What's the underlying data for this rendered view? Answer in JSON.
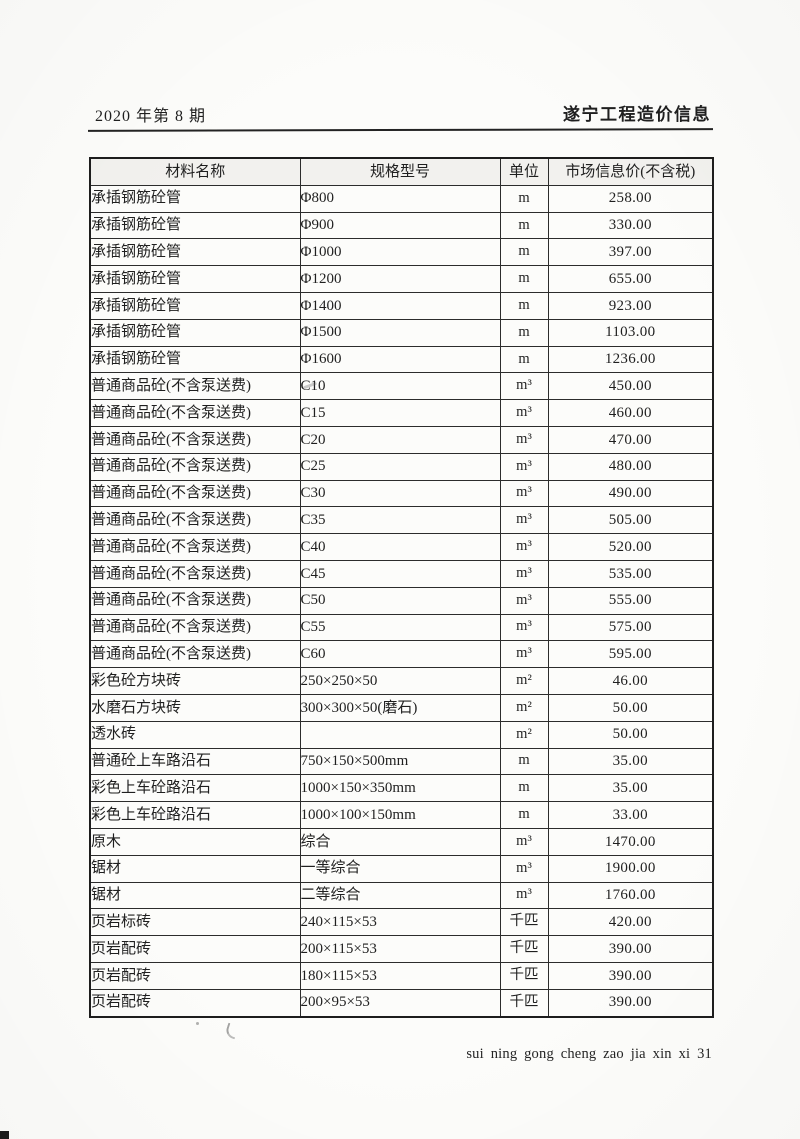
{
  "page": {
    "header_left": "2020 年第 8 期",
    "header_right": "遂宁工程造价信息",
    "footer": "sui ning gong cheng zao jia xin xi 31"
  },
  "colors": {
    "ink": "#1f1f1f",
    "paper": "#fcfcfa"
  },
  "table": {
    "columns": [
      "材料名称",
      "规格型号",
      "单位",
      "市场信息价(不含税)"
    ],
    "rows": [
      [
        "承插钢筋砼管",
        "Φ800",
        "m",
        "258.00"
      ],
      [
        "承插钢筋砼管",
        "Φ900",
        "m",
        "330.00"
      ],
      [
        "承插钢筋砼管",
        "Φ1000",
        "m",
        "397.00"
      ],
      [
        "承插钢筋砼管",
        "Φ1200",
        "m",
        "655.00"
      ],
      [
        "承插钢筋砼管",
        "Φ1400",
        "m",
        "923.00"
      ],
      [
        "承插钢筋砼管",
        "Φ1500",
        "m",
        "1103.00"
      ],
      [
        "承插钢筋砼管",
        "Φ1600",
        "m",
        "1236.00"
      ],
      [
        "普通商品砼(不含泵送费)",
        "C10",
        "m³",
        "450.00"
      ],
      [
        "普通商品砼(不含泵送费)",
        "C15",
        "m³",
        "460.00"
      ],
      [
        "普通商品砼(不含泵送费)",
        "C20",
        "m³",
        "470.00"
      ],
      [
        "普通商品砼(不含泵送费)",
        "C25",
        "m³",
        "480.00"
      ],
      [
        "普通商品砼(不含泵送费)",
        "C30",
        "m³",
        "490.00"
      ],
      [
        "普通商品砼(不含泵送费)",
        "C35",
        "m³",
        "505.00"
      ],
      [
        "普通商品砼(不含泵送费)",
        "C40",
        "m³",
        "520.00"
      ],
      [
        "普通商品砼(不含泵送费)",
        "C45",
        "m³",
        "535.00"
      ],
      [
        "普通商品砼(不含泵送费)",
        "C50",
        "m³",
        "555.00"
      ],
      [
        "普通商品砼(不含泵送费)",
        "C55",
        "m³",
        "575.00"
      ],
      [
        "普通商品砼(不含泵送费)",
        "C60",
        "m³",
        "595.00"
      ],
      [
        "彩色砼方块砖",
        "250×250×50",
        "m²",
        "46.00"
      ],
      [
        "水磨石方块砖",
        "300×300×50(磨石)",
        "m²",
        "50.00"
      ],
      [
        "透水砖",
        "",
        "m²",
        "50.00"
      ],
      [
        "普通砼上车路沿石",
        "750×150×500mm",
        "m",
        "35.00"
      ],
      [
        "彩色上车砼路沿石",
        "1000×150×350mm",
        "m",
        "35.00"
      ],
      [
        "彩色上车砼路沿石",
        "1000×100×150mm",
        "m",
        "33.00"
      ],
      [
        "原木",
        "综合",
        "m³",
        "1470.00"
      ],
      [
        "锯材",
        "一等综合",
        "m³",
        "1900.00"
      ],
      [
        "锯材",
        "二等综合",
        "m³",
        "1760.00"
      ],
      [
        "页岩标砖",
        "240×115×53",
        "千匹",
        "420.00"
      ],
      [
        "页岩配砖",
        "200×115×53",
        "千匹",
        "390.00"
      ],
      [
        "页岩配砖",
        "180×115×53",
        "千匹",
        "390.00"
      ],
      [
        "页岩配砖",
        "200×95×53",
        "千匹",
        "390.00"
      ]
    ]
  }
}
